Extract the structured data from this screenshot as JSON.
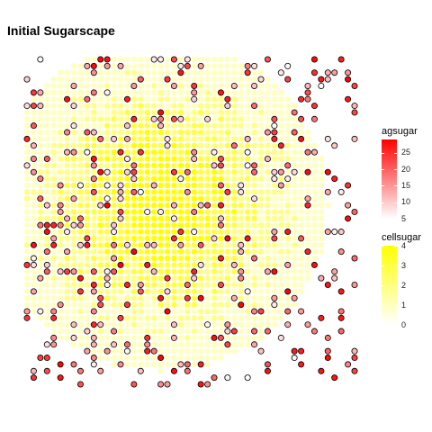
{
  "title": "Initial Sugarscape",
  "chart_data": {
    "type": "scatter",
    "title": "Initial Sugarscape",
    "xlabel": "",
    "ylabel": "",
    "grid": false,
    "grid_size": 50,
    "xlim": [
      1,
      50
    ],
    "ylim": [
      1,
      50
    ],
    "background_layer": {
      "variable": "cellsugar",
      "levels": [
        0,
        1,
        2,
        3,
        4
      ],
      "peaks": [
        {
          "x": 21,
          "y": 28,
          "value": 4
        }
      ],
      "max_radius_cells": 25
    },
    "agent_layer": {
      "variable": "agsugar",
      "count": 400,
      "range": [
        5,
        29
      ]
    },
    "legends": [
      {
        "title": "agsugar",
        "ticks": [
          "25",
          "20",
          "15",
          "10",
          "5"
        ],
        "tick_values": [
          25,
          20,
          15,
          10,
          5
        ],
        "range": [
          5,
          29
        ],
        "color_low": "#FFFFFF",
        "color_high": "#FF0000"
      },
      {
        "title": "cellsugar",
        "ticks": [
          "4",
          "3",
          "2",
          "1",
          "0"
        ],
        "tick_values": [
          4,
          3,
          2,
          1,
          0
        ],
        "range": [
          0,
          4
        ],
        "color_low": "#FFFFFF",
        "color_high": "#FFFF00"
      }
    ],
    "legend_position": "right",
    "colors": {
      "agent_stroke": "#000000",
      "cell_high": "#FFFF00",
      "cell_low": "#FFFFFF",
      "agent_high": "#FF0000",
      "agent_low": "#FFFFFF"
    }
  }
}
